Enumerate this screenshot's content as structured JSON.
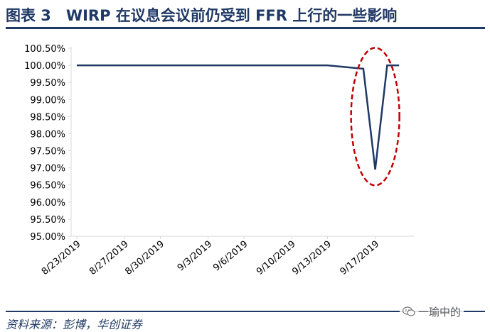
{
  "header": {
    "title": "图表 3　WIRP 在议息会议前仍受到 FFR 上行的一些影响"
  },
  "footer": {
    "source": "资料来源：彭博，华创证券",
    "watermark_text": "一瑜中的",
    "watermark_icon": "wechat-icon"
  },
  "colors": {
    "title": "#1f3864",
    "series": "#1f3864",
    "highlight": "#c00000",
    "axis": "#d9d9d9"
  },
  "chart_data": {
    "type": "line",
    "title": "",
    "xlabel": "",
    "ylabel": "",
    "ylim": [
      0.95,
      1.005
    ],
    "yticks": [
      0.95,
      0.955,
      0.96,
      0.965,
      0.97,
      0.975,
      0.98,
      0.985,
      0.99,
      0.995,
      1.0,
      1.005
    ],
    "ytick_labels": [
      "95.00%",
      "95.50%",
      "96.00%",
      "96.50%",
      "97.00%",
      "97.50%",
      "98.00%",
      "98.50%",
      "99.00%",
      "99.50%",
      "100.00%",
      "100.50%"
    ],
    "xtick_labels": [
      "8/23/2019",
      "8/27/2019",
      "8/30/2019",
      "9/3/2019",
      "9/6/2019",
      "9/10/2019",
      "9/13/2019",
      "9/17/2019"
    ],
    "grid": false,
    "legend": "none",
    "series": [
      {
        "x": [
          "8/23/2019",
          "8/26/2019",
          "8/27/2019",
          "8/28/2019",
          "8/29/2019",
          "8/30/2019",
          "9/2/2019",
          "9/3/2019",
          "9/4/2019",
          "9/5/2019",
          "9/6/2019",
          "9/9/2019",
          "9/10/2019",
          "9/11/2019",
          "9/12/2019",
          "9/13/2019",
          "9/16/2019",
          "9/17/2019",
          "9/18/2019",
          "9/19/2019"
        ],
        "values": [
          1.0,
          1.0,
          1.0,
          1.0,
          1.0,
          1.0,
          1.0,
          1.0,
          1.0,
          1.0,
          1.0,
          1.0,
          1.0,
          1.0,
          1.0,
          1.0,
          0.999,
          0.9695,
          1.0,
          1.0
        ]
      }
    ],
    "annotations": [
      {
        "type": "dashed-ellipse",
        "around_x": "9/17/2019",
        "around_y": 0.985
      }
    ]
  }
}
